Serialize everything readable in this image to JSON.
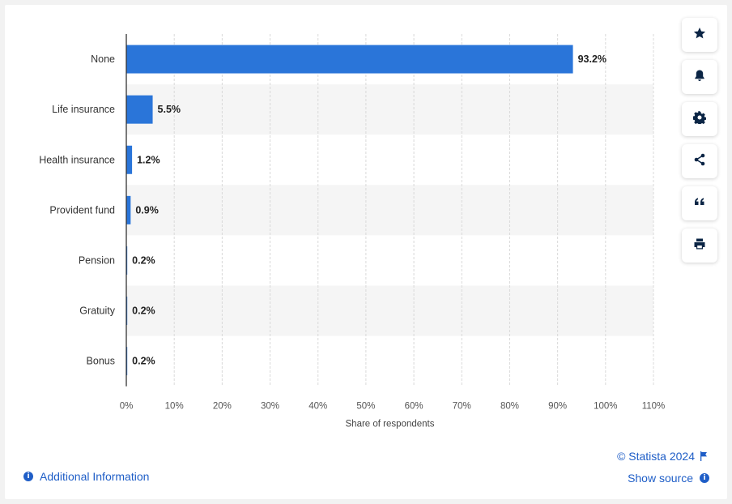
{
  "chart_data": {
    "type": "bar",
    "orientation": "horizontal",
    "categories": [
      "None",
      "Life insurance",
      "Health insurance",
      "Provident fund",
      "Pension",
      "Gratuity",
      "Bonus"
    ],
    "values": [
      93.2,
      5.5,
      1.2,
      0.9,
      0.2,
      0.2,
      0.2
    ],
    "value_labels": [
      "93.2%",
      "5.5%",
      "1.2%",
      "0.9%",
      "0.2%",
      "0.2%",
      "0.2%"
    ],
    "xlabel": "Share of respondents",
    "ylabel": "",
    "xlim": [
      0,
      110
    ],
    "ticks": [
      0,
      10,
      20,
      30,
      40,
      50,
      60,
      70,
      80,
      90,
      100,
      110
    ],
    "tick_labels": [
      "0%",
      "10%",
      "20%",
      "30%",
      "40%",
      "50%",
      "60%",
      "70%",
      "80%",
      "90%",
      "100%",
      "110%"
    ],
    "grid": true,
    "bar_color": "#2a75d9",
    "band_color": "#f5f5f5"
  },
  "toolbar": {
    "buttons": [
      {
        "name": "star-icon"
      },
      {
        "name": "bell-icon"
      },
      {
        "name": "gear-icon"
      },
      {
        "name": "share-icon"
      },
      {
        "name": "quote-icon"
      },
      {
        "name": "print-icon"
      }
    ]
  },
  "footer": {
    "copyright": "© Statista 2024",
    "show_source": "Show source",
    "additional_info": "Additional Information"
  },
  "colors": {
    "accent": "#1f5ec7",
    "bar": "#2a75d9"
  }
}
